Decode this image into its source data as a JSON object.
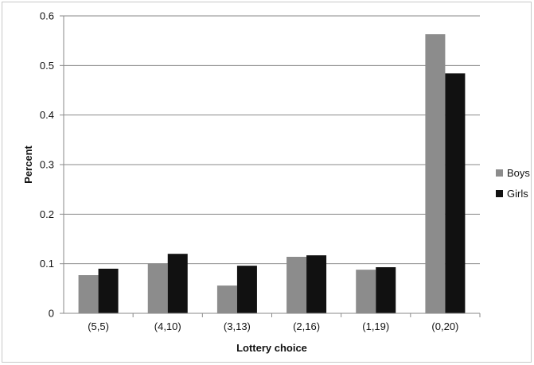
{
  "chart_data": {
    "type": "bar",
    "title": "",
    "xlabel": "Lottery choice",
    "ylabel": "Percent",
    "categories": [
      "(5,5)",
      "(4,10)",
      "(3,13)",
      "(2,16)",
      "(1,19)",
      "(0,20)"
    ],
    "series": [
      {
        "name": "Boys",
        "color": "#8c8c8c",
        "values": [
          0.077,
          0.101,
          0.056,
          0.114,
          0.088,
          0.563
        ]
      },
      {
        "name": "Girls",
        "color": "#111111",
        "values": [
          0.09,
          0.12,
          0.096,
          0.117,
          0.093,
          0.484
        ]
      }
    ],
    "ylim": [
      0,
      0.6
    ],
    "yticks": [
      "0",
      "0.1",
      "0.2",
      "0.3",
      "0.4",
      "0.5",
      "0.6"
    ],
    "ytick_values": [
      0,
      0.1,
      0.2,
      0.3,
      0.4,
      0.5,
      0.6
    ],
    "grid": true,
    "legend_position": "right"
  }
}
